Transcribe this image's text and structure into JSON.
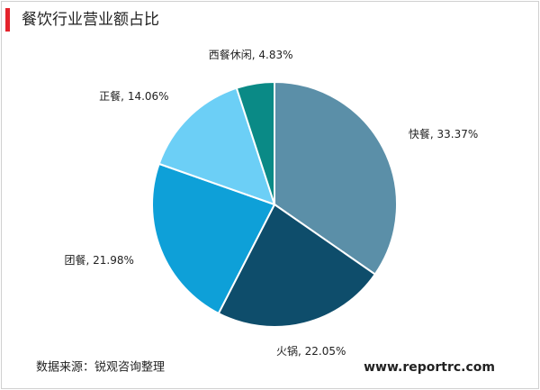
{
  "chart_data": {
    "type": "pie",
    "title": "餐饮行业营业额占比",
    "categories": [
      "快餐",
      "火锅",
      "团餐",
      "正餐",
      "西餐休闲"
    ],
    "values": [
      33.37,
      22.05,
      21.98,
      14.06,
      4.83
    ],
    "value_labels": [
      "33.37%",
      "22.05%",
      "21.98%",
      "14.06%",
      "4.83%"
    ],
    "label_separator": ", ",
    "colors": [
      "#5b8fa8",
      "#0e4d6b",
      "#0ea0d8",
      "#6ccff6",
      "#0a8a86"
    ],
    "source": "数据来源：锐观咨询整理",
    "website": "www.reportrc.com"
  }
}
